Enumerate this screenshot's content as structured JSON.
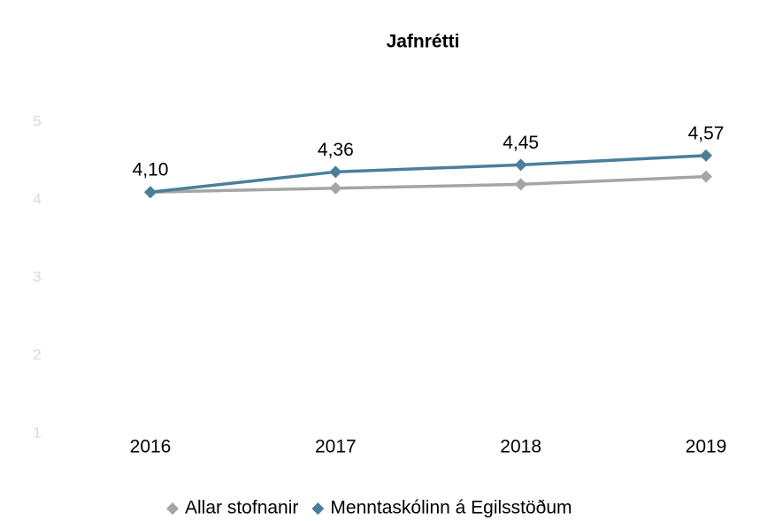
{
  "chart_data": {
    "type": "line",
    "title": "Jafnrétti",
    "categories": [
      "2016",
      "2017",
      "2018",
      "2019"
    ],
    "series": [
      {
        "name": "Allar stofnanir",
        "color": "#a5a5a5",
        "values": [
          4.1,
          4.15,
          4.2,
          4.3
        ]
      },
      {
        "name": "Menntaskólinn á Egilsstöðum",
        "color": "#4a7f9a",
        "values": [
          4.1,
          4.36,
          4.45,
          4.57
        ],
        "value_labels": [
          "4,10",
          "4,36",
          "4,45",
          "4,57"
        ]
      }
    ],
    "ylim": [
      1,
      5
    ],
    "yticks": [
      1,
      2,
      3,
      4,
      5
    ],
    "grid": false,
    "legend": "bottom"
  }
}
